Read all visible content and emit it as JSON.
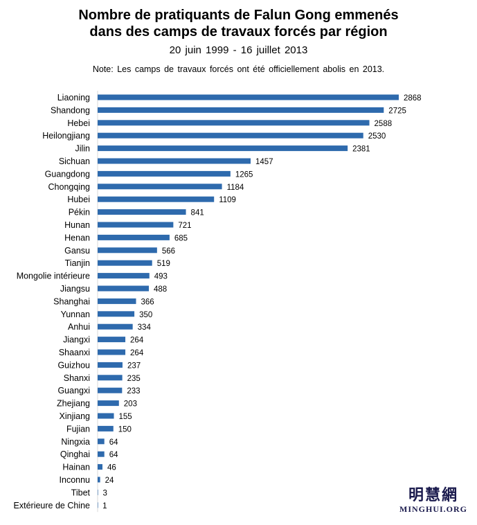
{
  "chart_data": {
    "type": "bar",
    "orientation": "horizontal",
    "title": [
      "Nombre de pratiquants de Falun Gong emmenés",
      "dans des camps de travaux forcés par région"
    ],
    "subtitle": "20 juin 1999 - 16 juillet 2013",
    "note": "Note: Les camps de travaux forcés ont été officiellement abolis en 2013.",
    "bar_color": "#2e6aad",
    "categories": [
      "Liaoning",
      "Shandong",
      "Hebei",
      "Heilongjiang",
      "Jilin",
      "Sichuan",
      "Guangdong",
      "Chongqing",
      "Hubei",
      "Pékin",
      "Hunan",
      "Henan",
      "Gansu",
      "Tianjin",
      "Mongolie intérieure",
      "Jiangsu",
      "Shanghai",
      "Yunnan",
      "Anhui",
      "Jiangxi",
      "Shaanxi",
      "Guizhou",
      "Shanxi",
      "Guangxi",
      "Zhejiang",
      "Xinjiang",
      "Fujian",
      "Ningxia",
      "Qinghai",
      "Hainan",
      "Inconnu",
      "Tibet",
      "Extérieure de Chine"
    ],
    "values": [
      2868,
      2725,
      2588,
      2530,
      2381,
      1457,
      1265,
      1184,
      1109,
      841,
      721,
      685,
      566,
      519,
      493,
      488,
      366,
      350,
      334,
      264,
      264,
      237,
      235,
      233,
      203,
      155,
      150,
      64,
      64,
      46,
      24,
      3,
      1
    ],
    "grid": false,
    "legend": "none"
  },
  "logo": {
    "chinese": "明慧網",
    "english": "MINGHUI.ORG"
  }
}
